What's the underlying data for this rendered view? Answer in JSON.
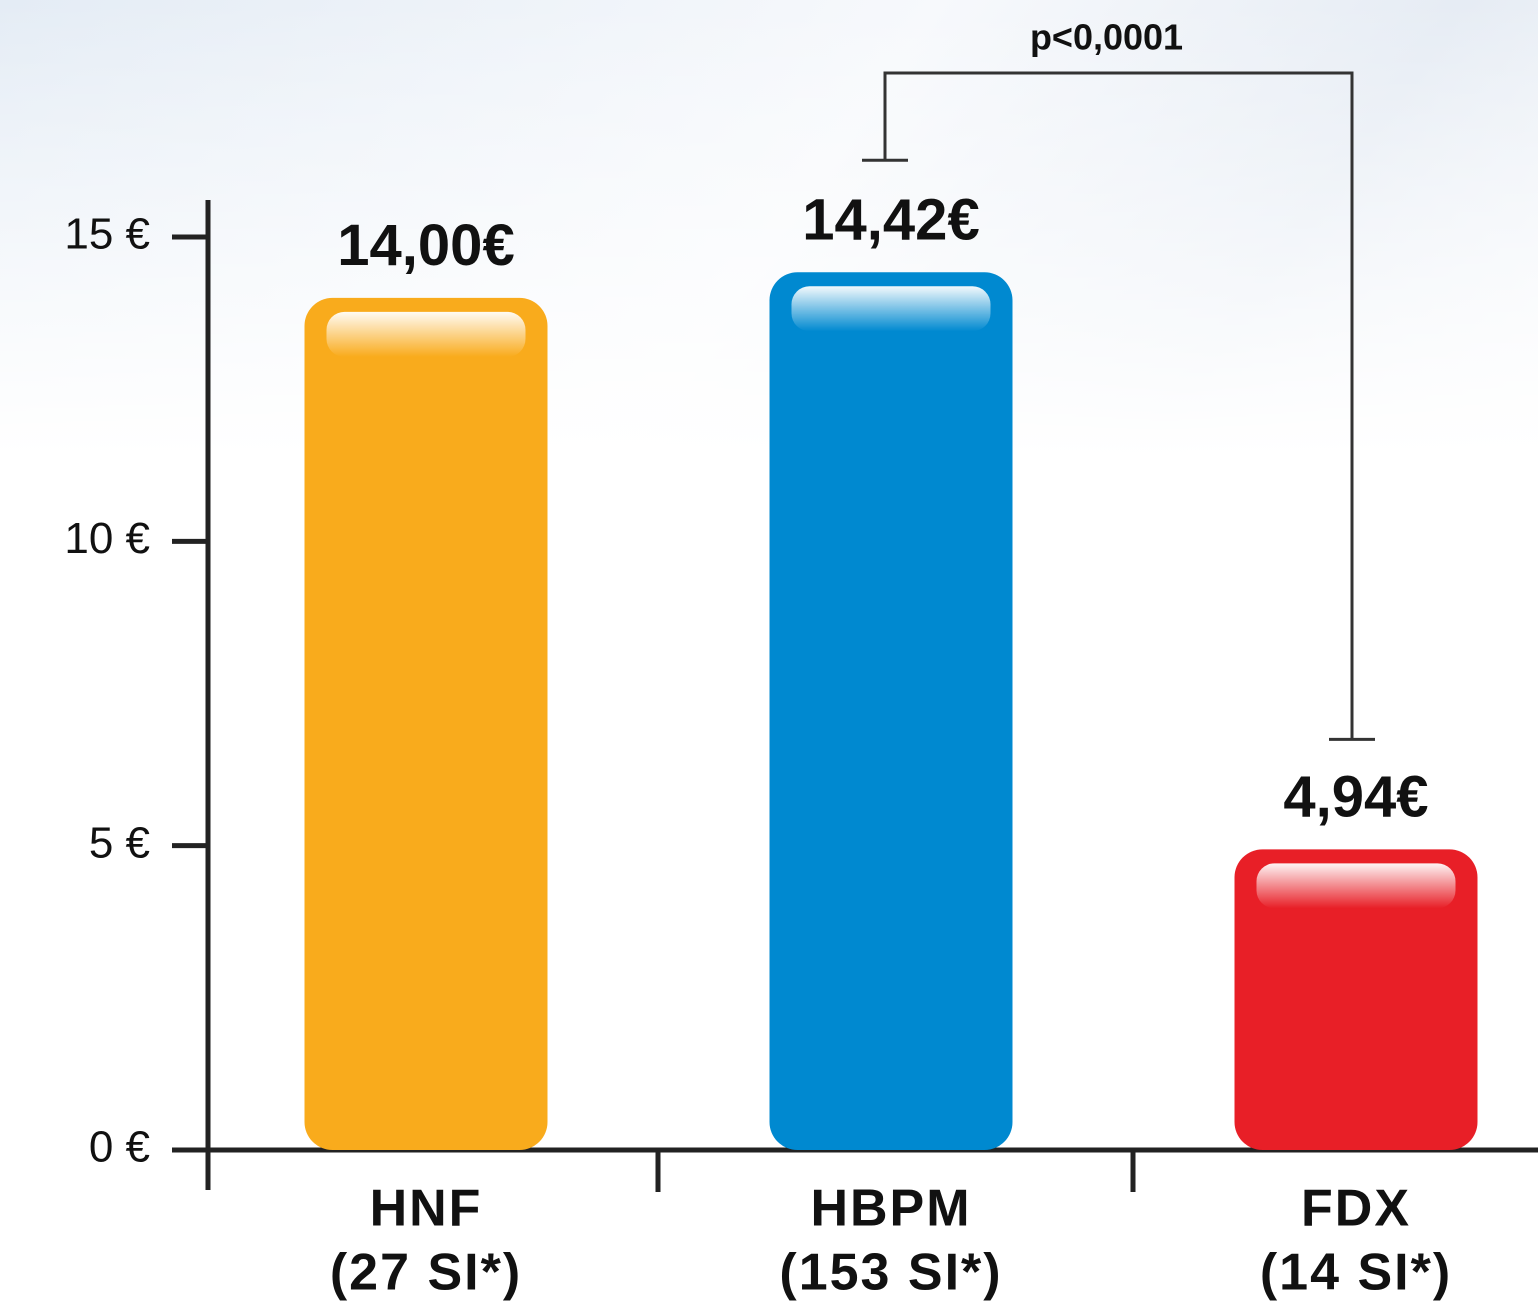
{
  "chart_data": {
    "type": "bar",
    "categories": [
      [
        "HNF",
        "(27 SI*)"
      ],
      [
        "HBPM",
        "(153 SI*)"
      ],
      [
        "FDX",
        "(14 SI*)"
      ]
    ],
    "values": [
      14.0,
      14.42,
      4.94
    ],
    "value_labels": [
      "14,00€",
      "14,42€",
      "4,94€"
    ],
    "colors": [
      "#f9ab1c",
      "#0089d0",
      "#e81f27"
    ],
    "ylim": [
      0,
      15
    ],
    "yticks": [
      {
        "value": 0,
        "label": "0 €"
      },
      {
        "value": 5,
        "label": "5 €"
      },
      {
        "value": 10,
        "label": "10 €"
      },
      {
        "value": 15,
        "label": "15 €"
      }
    ],
    "annotations": [
      {
        "text": "p<0,0001",
        "from": 1,
        "to": 2
      }
    ]
  }
}
